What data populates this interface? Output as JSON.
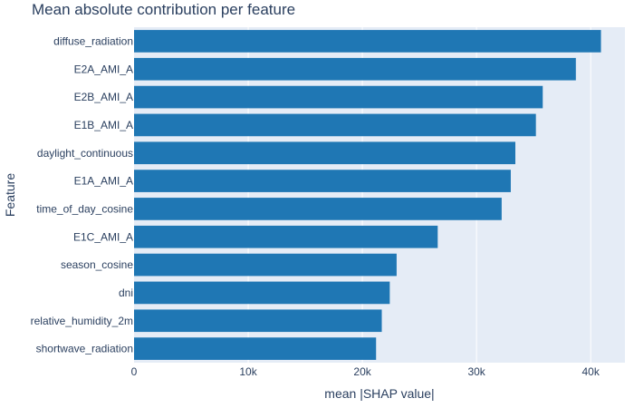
{
  "chart_data": {
    "type": "bar",
    "orientation": "horizontal",
    "title": "Mean absolute contribution per feature",
    "xlabel": "mean |SHAP value|",
    "ylabel": "Feature",
    "xlim": [
      0,
      43000
    ],
    "x_ticks": [
      {
        "value": 0,
        "label": "0"
      },
      {
        "value": 10000,
        "label": "10k"
      },
      {
        "value": 20000,
        "label": "20k"
      },
      {
        "value": 30000,
        "label": "30k"
      },
      {
        "value": 40000,
        "label": "40k"
      }
    ],
    "categories": [
      "diffuse_radiation",
      "E2A_AMI_A",
      "E2B_AMI_A",
      "E1B_AMI_A",
      "daylight_continuous",
      "E1A_AMI_A",
      "time_of_day_cosine",
      "E1C_AMI_A",
      "season_cosine",
      "dni",
      "relative_humidity_2m",
      "shortwave_radiation"
    ],
    "values": [
      40900,
      38700,
      35800,
      35200,
      33400,
      33000,
      32200,
      26600,
      23000,
      22400,
      21700,
      21200
    ],
    "bar_color": "#1f77b4",
    "plot_background": "#e5ecf6",
    "gridlines": true,
    "legend": "none"
  }
}
